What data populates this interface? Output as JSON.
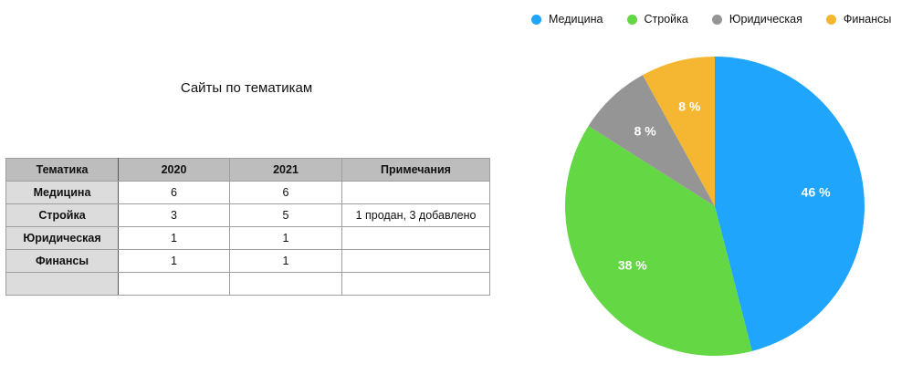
{
  "title": "Сайты по тематикам",
  "table": {
    "headers": [
      "Тематика",
      "2020",
      "2021",
      "Примечания"
    ],
    "rows": [
      [
        "Медицина",
        "6",
        "6",
        ""
      ],
      [
        "Стройка",
        "3",
        "5",
        "1 продан, 3 добавлено"
      ],
      [
        "Юридическая",
        "1",
        "1",
        ""
      ],
      [
        "Финансы",
        "1",
        "1",
        ""
      ],
      [
        "",
        "",
        "",
        ""
      ]
    ]
  },
  "chart_data": {
    "type": "pie",
    "categories": [
      "Медицина",
      "Стройка",
      "Юридическая",
      "Финансы"
    ],
    "values": [
      46,
      38,
      8,
      8
    ],
    "labels": [
      "46 %",
      "38 %",
      "8 %",
      "8 %"
    ],
    "colors": [
      "#1fa5fb",
      "#64d744",
      "#959595",
      "#f5b731"
    ],
    "legend_position": "top"
  }
}
